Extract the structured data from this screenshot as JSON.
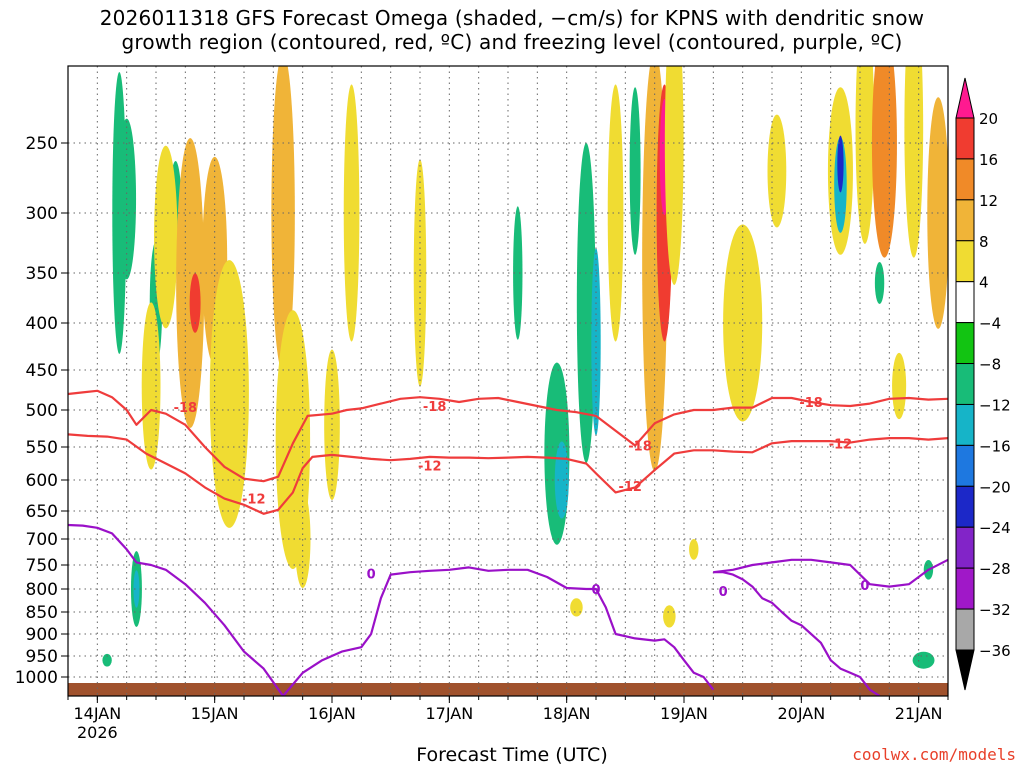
{
  "chart_data": {
    "type": "heatmap",
    "title_line1": "2026011318 GFS Forecast Omega (shaded, −cm/s) for KPNS with dendritic snow",
    "title_line2": "growth region (contoured, red, ºC) and freezing level (contoured, purple, ºC)",
    "xlabel": "Forecast Time (UTC)",
    "ylabel": "",
    "y_ticks": [
      250,
      300,
      350,
      400,
      450,
      500,
      550,
      600,
      650,
      700,
      750,
      800,
      850,
      900,
      950,
      1000
    ],
    "x_ticks": [
      {
        "label": "14JAN",
        "sub": "2026",
        "hours": 6
      },
      {
        "label": "15JAN",
        "sub": "",
        "hours": 30
      },
      {
        "label": "16JAN",
        "sub": "",
        "hours": 54
      },
      {
        "label": "17JAN",
        "sub": "",
        "hours": 78
      },
      {
        "label": "18JAN",
        "sub": "",
        "hours": 102
      },
      {
        "label": "19JAN",
        "sub": "",
        "hours": 126
      },
      {
        "label": "20JAN",
        "sub": "",
        "hours": 150
      },
      {
        "label": "21JAN",
        "sub": "",
        "hours": 174
      }
    ],
    "x_range_hours": [
      0,
      180
    ],
    "y_range_hpa": [
      200,
      1030
    ],
    "colorbar": {
      "labels": [
        "20",
        "16",
        "12",
        "8",
        "4",
        "−4",
        "−8",
        "−12",
        "−16",
        "−20",
        "−24",
        "−28",
        "−32",
        "−36"
      ],
      "colors": [
        "#ff1a90",
        "#f03c30",
        "#f08a28",
        "#f0b438",
        "#f0dc32",
        "#ffffff",
        "#12c412",
        "#18bc78",
        "#16b4c8",
        "#1e78e0",
        "#1c28c8",
        "#8224c8",
        "#a018c8",
        "#a8a8a8",
        "#000000"
      ]
    },
    "dendritic_contours": [
      {
        "label": "-18",
        "points": [
          [
            0,
            480
          ],
          [
            3,
            478
          ],
          [
            6,
            476
          ],
          [
            9,
            484
          ],
          [
            12,
            500
          ],
          [
            14,
            520
          ],
          [
            17,
            500
          ],
          [
            20,
            505
          ],
          [
            24,
            520
          ],
          [
            28,
            550
          ],
          [
            32,
            580
          ],
          [
            36,
            598
          ],
          [
            40,
            602
          ],
          [
            43,
            595
          ],
          [
            46,
            545
          ],
          [
            49,
            508
          ],
          [
            54,
            505
          ],
          [
            57,
            500
          ],
          [
            60,
            498
          ],
          [
            64,
            492
          ],
          [
            68,
            486
          ],
          [
            72,
            484
          ],
          [
            76,
            486
          ],
          [
            80,
            490
          ],
          [
            84,
            486
          ],
          [
            88,
            485
          ],
          [
            92,
            490
          ],
          [
            96,
            495
          ],
          [
            100,
            500
          ],
          [
            104,
            503
          ],
          [
            108,
            508
          ],
          [
            112,
            528
          ],
          [
            116,
            548
          ],
          [
            120,
            518
          ],
          [
            124,
            506
          ],
          [
            128,
            500
          ],
          [
            132,
            500
          ],
          [
            136,
            497
          ],
          [
            140,
            497
          ],
          [
            144,
            485
          ],
          [
            148,
            485
          ],
          [
            152,
            490
          ],
          [
            156,
            494
          ],
          [
            160,
            495
          ],
          [
            164,
            492
          ],
          [
            168,
            486
          ],
          [
            172,
            485
          ],
          [
            176,
            487
          ],
          [
            180,
            486
          ]
        ],
        "label_positions": [
          [
            24,
            496
          ],
          [
            75,
            495
          ],
          [
            117,
            548
          ],
          [
            152,
            490
          ]
        ]
      },
      {
        "label": "-12",
        "points": [
          [
            0,
            533
          ],
          [
            4,
            535
          ],
          [
            8,
            536
          ],
          [
            12,
            540
          ],
          [
            16,
            560
          ],
          [
            20,
            575
          ],
          [
            24,
            590
          ],
          [
            28,
            612
          ],
          [
            32,
            630
          ],
          [
            36,
            640
          ],
          [
            40,
            655
          ],
          [
            43,
            648
          ],
          [
            46,
            620
          ],
          [
            48,
            582
          ],
          [
            50,
            565
          ],
          [
            54,
            562
          ],
          [
            58,
            565
          ],
          [
            62,
            568
          ],
          [
            66,
            570
          ],
          [
            70,
            568
          ],
          [
            74,
            565
          ],
          [
            78,
            566
          ],
          [
            82,
            566
          ],
          [
            86,
            567
          ],
          [
            90,
            566
          ],
          [
            94,
            565
          ],
          [
            98,
            566
          ],
          [
            102,
            568
          ],
          [
            106,
            575
          ],
          [
            108,
            590
          ],
          [
            112,
            620
          ],
          [
            116,
            612
          ],
          [
            120,
            585
          ],
          [
            124,
            560
          ],
          [
            128,
            555
          ],
          [
            132,
            555
          ],
          [
            136,
            557
          ],
          [
            140,
            558
          ],
          [
            144,
            545
          ],
          [
            148,
            542
          ],
          [
            152,
            542
          ],
          [
            156,
            542
          ],
          [
            160,
            544
          ],
          [
            164,
            540
          ],
          [
            168,
            538
          ],
          [
            172,
            538
          ],
          [
            176,
            540
          ],
          [
            180,
            538
          ]
        ],
        "label_positions": [
          [
            38,
            630
          ],
          [
            74,
            578
          ],
          [
            115,
            610
          ],
          [
            158,
            545
          ]
        ]
      }
    ],
    "freezing_contour": {
      "label": "0",
      "points": [
        [
          0,
          675
        ],
        [
          3,
          676
        ],
        [
          6,
          680
        ],
        [
          9,
          690
        ],
        [
          12,
          720
        ],
        [
          14,
          745
        ],
        [
          17,
          750
        ],
        [
          20,
          760
        ],
        [
          24,
          790
        ],
        [
          28,
          830
        ],
        [
          32,
          880
        ],
        [
          36,
          940
        ],
        [
          40,
          980
        ],
        [
          44,
          1030
        ],
        [
          48,
          990
        ],
        [
          52,
          960
        ],
        [
          56,
          940
        ],
        [
          60,
          930
        ],
        [
          62,
          900
        ],
        [
          64,
          820
        ],
        [
          66,
          770
        ],
        [
          70,
          765
        ],
        [
          74,
          762
        ],
        [
          78,
          760
        ],
        [
          82,
          755
        ],
        [
          86,
          762
        ],
        [
          90,
          760
        ],
        [
          94,
          760
        ],
        [
          98,
          775
        ],
        [
          102,
          798
        ],
        [
          106,
          800
        ],
        [
          108,
          800
        ],
        [
          110,
          840
        ],
        [
          112,
          900
        ],
        [
          116,
          910
        ],
        [
          120,
          915
        ],
        [
          122,
          912
        ],
        [
          124,
          930
        ],
        [
          126,
          960
        ],
        [
          128,
          990
        ],
        [
          130,
          1000
        ],
        [
          132,
          1020
        ]
      ],
      "label_positions": [
        [
          62,
          768
        ],
        [
          108,
          800
        ]
      ]
    },
    "freezing_contour_2": {
      "label": "0",
      "points": [
        [
          132,
          765
        ],
        [
          134,
          765
        ],
        [
          136,
          770
        ],
        [
          138,
          780
        ],
        [
          140,
          795
        ],
        [
          142,
          820
        ],
        [
          144,
          830
        ],
        [
          146,
          850
        ],
        [
          148,
          870
        ],
        [
          150,
          880
        ],
        [
          152,
          900
        ],
        [
          154,
          920
        ],
        [
          156,
          960
        ],
        [
          158,
          980
        ],
        [
          160,
          990
        ],
        [
          162,
          1000
        ],
        [
          164,
          1020
        ],
        [
          166,
          1030
        ]
      ],
      "label_positions": [
        [
          134,
          804
        ]
      ]
    },
    "freezing_contour_3": {
      "label": "0",
      "points": [
        [
          132,
          765
        ],
        [
          136,
          760
        ],
        [
          140,
          750
        ],
        [
          144,
          745
        ],
        [
          148,
          740
        ],
        [
          152,
          740
        ],
        [
          156,
          745
        ],
        [
          160,
          750
        ],
        [
          164,
          790
        ],
        [
          168,
          795
        ],
        [
          172,
          790
        ],
        [
          176,
          760
        ],
        [
          180,
          740
        ]
      ],
      "label_positions": [
        [
          163,
          792
        ]
      ]
    },
    "omega_blobs": [
      {
        "x": 10.5,
        "y": 300,
        "w": 0.9,
        "h": 220,
        "v": -8
      },
      {
        "x": 11.5,
        "y": 280,
        "w": 0.6,
        "h": 80,
        "v": -12
      },
      {
        "x": 12,
        "y": 290,
        "w": 1.2,
        "h": 120,
        "v": -8
      },
      {
        "x": 18,
        "y": 380,
        "w": 0.8,
        "h": 120,
        "v": -8
      },
      {
        "x": 22,
        "y": 300,
        "w": 0.8,
        "h": 80,
        "v": -8
      },
      {
        "x": 17,
        "y": 470,
        "w": 1.2,
        "h": 200,
        "v": 4
      },
      {
        "x": 20,
        "y": 320,
        "w": 1.5,
        "h": 150,
        "v": 4
      },
      {
        "x": 25,
        "y": 360,
        "w": 1.8,
        "h": 260,
        "v": 8
      },
      {
        "x": 26,
        "y": 380,
        "w": 0.7,
        "h": 60,
        "v": 16
      },
      {
        "x": 30,
        "y": 340,
        "w": 1.6,
        "h": 180,
        "v": 8
      },
      {
        "x": 33,
        "y": 480,
        "w": 2.5,
        "h": 320,
        "v": 4
      },
      {
        "x": 44,
        "y": 300,
        "w": 1.5,
        "h": 250,
        "v": 8
      },
      {
        "x": 46,
        "y": 540,
        "w": 2.2,
        "h": 350,
        "v": 4
      },
      {
        "x": 48,
        "y": 700,
        "w": 1.0,
        "h": 180,
        "v": 4
      },
      {
        "x": 54,
        "y": 520,
        "w": 1.0,
        "h": 200,
        "v": 4
      },
      {
        "x": 58,
        "y": 300,
        "w": 1.0,
        "h": 200,
        "v": 4
      },
      {
        "x": 72,
        "y": 350,
        "w": 0.8,
        "h": 200,
        "v": 4
      },
      {
        "x": 92,
        "y": 350,
        "w": 0.6,
        "h": 120,
        "v": -8
      },
      {
        "x": 100,
        "y": 560,
        "w": 1.6,
        "h": 260,
        "v": -8
      },
      {
        "x": 101,
        "y": 600,
        "w": 0.9,
        "h": 120,
        "v": -12
      },
      {
        "x": 106,
        "y": 380,
        "w": 1.2,
        "h": 300,
        "v": -8
      },
      {
        "x": 108,
        "y": 420,
        "w": 0.6,
        "h": 200,
        "v": -12
      },
      {
        "x": 112,
        "y": 300,
        "w": 1.0,
        "h": 200,
        "v": 4
      },
      {
        "x": 116,
        "y": 270,
        "w": 0.7,
        "h": 120,
        "v": -8
      },
      {
        "x": 120,
        "y": 340,
        "w": 1.6,
        "h": 360,
        "v": 8
      },
      {
        "x": 122,
        "y": 300,
        "w": 1.0,
        "h": 200,
        "v": 16
      },
      {
        "x": 122,
        "y": 260,
        "w": 0.6,
        "h": 80,
        "v": 20
      },
      {
        "x": 124,
        "y": 250,
        "w": 1.2,
        "h": 200,
        "v": 4
      },
      {
        "x": 138,
        "y": 400,
        "w": 2.5,
        "h": 200,
        "v": 4
      },
      {
        "x": 145,
        "y": 270,
        "w": 1.2,
        "h": 80,
        "v": 4
      },
      {
        "x": 158,
        "y": 270,
        "w": 1.6,
        "h": 120,
        "v": 4
      },
      {
        "x": 158,
        "y": 280,
        "w": 0.8,
        "h": 70,
        "v": -12
      },
      {
        "x": 158,
        "y": 265,
        "w": 0.4,
        "h": 40,
        "v": -20
      },
      {
        "x": 163,
        "y": 240,
        "w": 1.2,
        "h": 160,
        "v": 4
      },
      {
        "x": 167,
        "y": 250,
        "w": 1.6,
        "h": 160,
        "v": 12
      },
      {
        "x": 173,
        "y": 240,
        "w": 1.2,
        "h": 180,
        "v": 4
      },
      {
        "x": 178,
        "y": 300,
        "w": 1.4,
        "h": 180,
        "v": 8
      },
      {
        "x": 14,
        "y": 800,
        "w": 0.7,
        "h": 160,
        "v": -8
      },
      {
        "x": 14,
        "y": 800,
        "w": 0.35,
        "h": 80,
        "v": -12
      },
      {
        "x": 176,
        "y": 760,
        "w": 0.6,
        "h": 40,
        "v": -8
      },
      {
        "x": 175,
        "y": 960,
        "w": 1.4,
        "h": 40,
        "v": -8
      },
      {
        "x": 8,
        "y": 960,
        "w": 0.6,
        "h": 30,
        "v": -8
      },
      {
        "x": 104,
        "y": 840,
        "w": 0.8,
        "h": 40,
        "v": 4
      },
      {
        "x": 123,
        "y": 860,
        "w": 0.8,
        "h": 50,
        "v": 4
      },
      {
        "x": 128,
        "y": 720,
        "w": 0.6,
        "h": 40,
        "v": 4
      },
      {
        "x": 166,
        "y": 360,
        "w": 0.6,
        "h": 40,
        "v": -8
      },
      {
        "x": 170,
        "y": 470,
        "w": 0.9,
        "h": 80,
        "v": 4
      }
    ]
  },
  "watermark": "coolwx.com/models"
}
